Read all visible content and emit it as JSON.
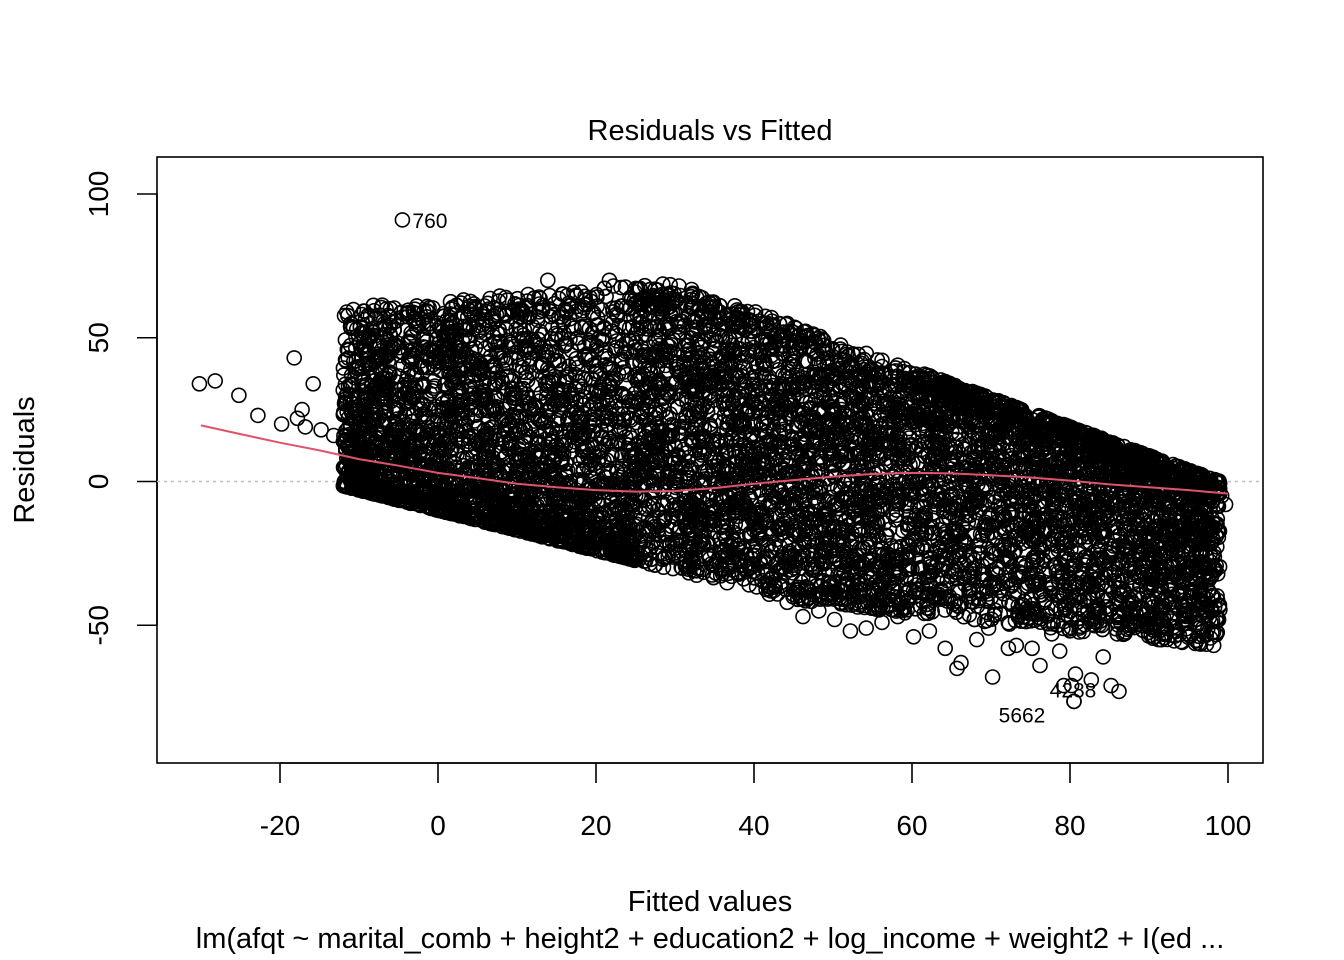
{
  "chart_data": {
    "type": "scatter",
    "title": "Residuals vs Fitted",
    "xlabel": "Fitted values",
    "ylabel": "Residuals",
    "subtitle": "lm(afqt ~ marital_comb + height2 + education2 + log_income + weight2 + I(ed ...",
    "xlim": [
      -35,
      105
    ],
    "ylim": [
      -98,
      113
    ],
    "x_ticks": [
      -20,
      0,
      20,
      40,
      60,
      80,
      100
    ],
    "y_ticks": [
      -50,
      0,
      50,
      100
    ],
    "x_tick_labels": [
      "-20",
      "0",
      "20",
      "40",
      "60",
      "80",
      "100"
    ],
    "y_tick_labels": [
      "-50",
      "0",
      "50",
      "100"
    ],
    "grid": false,
    "reference_line": {
      "y": 0,
      "style": "dotted",
      "color": "#BEBEBE"
    },
    "smoother_color": "#DF536B",
    "point_color": "#000000",
    "smoother": {
      "x": [
        -30,
        -25,
        -20,
        -15,
        -10,
        -5,
        0,
        5,
        10,
        15,
        20,
        25,
        30,
        35,
        40,
        45,
        50,
        55,
        60,
        65,
        70,
        75,
        80,
        85,
        90,
        95,
        100
      ],
      "y": [
        19.5,
        16.5,
        13.5,
        10.8,
        7.8,
        5.5,
        3,
        1.2,
        -0.8,
        -2,
        -3,
        -3.5,
        -3.3,
        -2.3,
        -0.8,
        0.5,
        1.7,
        2.6,
        3,
        2.8,
        2.2,
        1.4,
        0.3,
        -1.0,
        -2.0,
        -3.0,
        -4.2
      ]
    },
    "labeled_points": [
      {
        "id": "760",
        "x": -4.5,
        "y": 91
      },
      {
        "id": "4288",
        "x": 80.5,
        "y": -76.5
      },
      {
        "id": "5662",
        "x": 80.5,
        "y": -76.5
      }
    ],
    "series": [
      {
        "points": [
          [
            -30.2,
            34
          ],
          [
            -28.2,
            35
          ],
          [
            -25.2,
            30
          ],
          [
            -22.8,
            23
          ],
          [
            -19.8,
            20
          ],
          [
            -18.2,
            43
          ],
          [
            -17.8,
            22
          ],
          [
            -17.2,
            25
          ],
          [
            -16.8,
            19
          ],
          [
            -15.8,
            34
          ],
          [
            -14.8,
            18
          ],
          [
            -13.2,
            16
          ],
          [
            -11.8,
            14
          ],
          [
            -10.8,
            13
          ],
          [
            -9.2,
            24
          ],
          [
            -8.2,
            29
          ],
          [
            -8.2,
            22
          ],
          [
            -7.8,
            15
          ],
          [
            -5.8,
            18
          ],
          [
            -4.8,
            13
          ],
          [
            -3.8,
            11
          ],
          [
            -2.2,
            10
          ],
          [
            -1.2,
            25
          ],
          [
            -0.2,
            17
          ],
          [
            1.2,
            12
          ],
          [
            2.2,
            41
          ],
          [
            2.7,
            39
          ],
          [
            3.2,
            8
          ],
          [
            5.2,
            52
          ],
          [
            5.8,
            28
          ],
          [
            6.2,
            59
          ],
          [
            7.7,
            45
          ],
          [
            8.2,
            43
          ],
          [
            9.2,
            35
          ],
          [
            9.7,
            47
          ],
          [
            10.2,
            60
          ],
          [
            12.2,
            21
          ],
          [
            13.7,
            45
          ],
          [
            13.9,
            70
          ],
          [
            15.2,
            31
          ],
          [
            17.7,
            50
          ],
          [
            18.7,
            54
          ],
          [
            19.2,
            28
          ],
          [
            20.2,
            57
          ],
          [
            21.7,
            70
          ],
          [
            22.2,
            68
          ],
          [
            23.2,
            61
          ],
          [
            24.2,
            60
          ],
          [
            28.2,
            60
          ],
          [
            30.2,
            63
          ],
          [
            32.2,
            65
          ],
          [
            34.2,
            57
          ],
          [
            38.2,
            58
          ],
          [
            40.2,
            59
          ],
          [
            42.2,
            57
          ],
          [
            44.2,
            55
          ],
          [
            15.2,
            20
          ],
          [
            18.2,
            22
          ],
          [
            25.2,
            35
          ],
          [
            28.2,
            42
          ],
          [
            27.2,
            -3
          ],
          [
            29.2,
            12
          ],
          [
            33.2,
            24
          ],
          [
            36.2,
            30
          ],
          [
            46.2,
            34
          ],
          [
            48.2,
            41
          ],
          [
            52.2,
            38
          ],
          [
            56.2,
            40
          ],
          [
            60.2,
            34
          ],
          [
            62.2,
            30
          ],
          [
            66.2,
            27
          ],
          [
            68.2,
            24
          ],
          [
            70.2,
            22
          ],
          [
            72.2,
            20
          ],
          [
            74.2,
            18
          ],
          [
            76.2,
            16
          ],
          [
            78.2,
            13
          ],
          [
            80.2,
            12
          ],
          [
            82.2,
            10
          ],
          [
            84.2,
            7
          ],
          [
            86.2,
            6
          ],
          [
            88.2,
            5
          ],
          [
            90.2,
            3
          ],
          [
            92.2,
            2
          ],
          [
            94.2,
            1
          ],
          [
            96.2,
            -1
          ],
          [
            98.2,
            -3
          ],
          [
            99.2,
            -5
          ],
          [
            99.7,
            -8
          ],
          [
            98.7,
            -2
          ],
          [
            96.7,
            -21
          ],
          [
            96.7,
            -26
          ],
          [
            95.2,
            -16
          ],
          [
            93.2,
            -32
          ],
          [
            92.2,
            -51
          ],
          [
            91.2,
            -43
          ],
          [
            89.2,
            -44
          ],
          [
            88.2,
            -44
          ],
          [
            86.2,
            -46
          ],
          [
            86.2,
            -73
          ],
          [
            85.2,
            -71
          ],
          [
            84.2,
            -61
          ],
          [
            83.7,
            -44
          ],
          [
            82.7,
            -69
          ],
          [
            81.2,
            -51
          ],
          [
            80.7,
            -67
          ],
          [
            80.2,
            -71
          ],
          [
            79.2,
            -71
          ],
          [
            78.7,
            -59
          ],
          [
            77.7,
            -53
          ],
          [
            76.2,
            -64
          ],
          [
            75.2,
            -58
          ],
          [
            74.2,
            -47
          ],
          [
            73.2,
            -57
          ],
          [
            72.2,
            -58
          ],
          [
            70.2,
            -68
          ],
          [
            69.7,
            -51
          ],
          [
            68.2,
            -55
          ],
          [
            67.2,
            -40
          ],
          [
            66.2,
            -63
          ],
          [
            65.7,
            -65
          ],
          [
            64.2,
            -58
          ],
          [
            62.2,
            -52
          ],
          [
            60.2,
            -54
          ],
          [
            58.2,
            -47
          ],
          [
            56.2,
            -49
          ],
          [
            54.2,
            -51
          ],
          [
            52.2,
            -52
          ],
          [
            50.2,
            -48
          ],
          [
            48.2,
            -45
          ],
          [
            46.2,
            -47
          ],
          [
            44.2,
            -42
          ],
          [
            86.2,
            -42
          ],
          [
            88.2,
            -30
          ],
          [
            90.2,
            -33
          ],
          [
            92.2,
            -25
          ],
          [
            86.2,
            -23
          ],
          [
            84.2,
            -19
          ],
          [
            82.2,
            -12
          ],
          [
            78.2,
            -8
          ],
          [
            76.2,
            -22
          ],
          [
            74.2,
            -37
          ],
          [
            72.2,
            -20
          ],
          [
            70.2,
            -31
          ]
        ]
      }
    ]
  }
}
